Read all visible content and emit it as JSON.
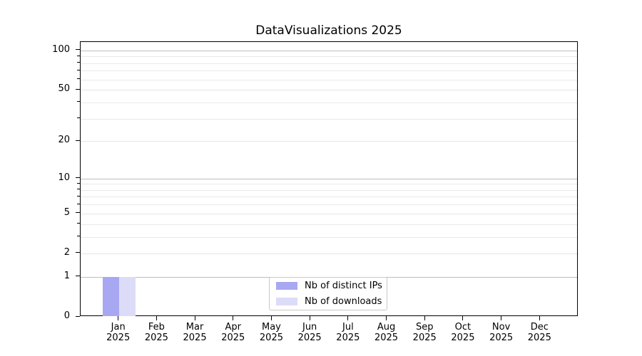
{
  "title": "DataVisualizations 2025",
  "chart_data": {
    "type": "bar",
    "title": "DataVisualizations 2025",
    "categories": [
      "Jan 2025",
      "Feb 2025",
      "Mar 2025",
      "Apr 2025",
      "May 2025",
      "Jun 2025",
      "Jul 2025",
      "Aug 2025",
      "Sep 2025",
      "Oct 2025",
      "Nov 2025",
      "Dec 2025"
    ],
    "series": [
      {
        "name": "Nb of distinct IPs",
        "color": "#a8a8f2",
        "values": [
          1,
          0,
          0,
          0,
          0,
          0,
          0,
          0,
          0,
          0,
          0,
          0
        ]
      },
      {
        "name": "Nb of downloads",
        "color": "#dcdcf8",
        "values": [
          1,
          0,
          0,
          0,
          0,
          0,
          0,
          0,
          0,
          0,
          0,
          0
        ]
      }
    ],
    "yscale": "log1p",
    "ylim": [
      0,
      116
    ],
    "y_ticks": [
      0,
      1,
      2,
      5,
      10,
      20,
      50,
      100
    ],
    "y_minor_gridlines": [
      3,
      4,
      6,
      7,
      8,
      9,
      30,
      40,
      60,
      70,
      80,
      90
    ],
    "y_major_gridlines": [
      1,
      10,
      100
    ],
    "xlabel": "",
    "ylabel": "",
    "grid": "on",
    "legend_position": "bottom-center"
  },
  "colors": {
    "background": "#ffffff",
    "spine": "#000000",
    "grid_major": "#bdbdbd",
    "grid_minor": "#e9e9e9",
    "bar_distinct_ips": "#a8a8f2",
    "bar_downloads": "#dcdcf8"
  }
}
